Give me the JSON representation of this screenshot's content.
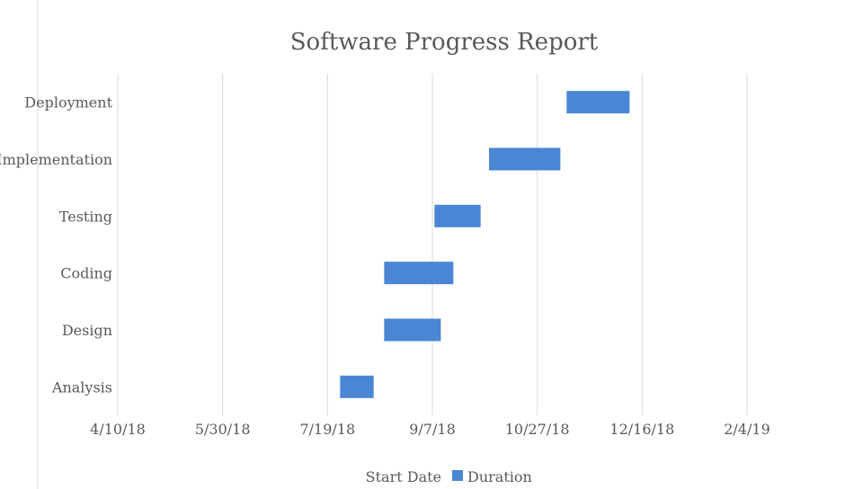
{
  "chart_data": {
    "type": "bar",
    "orientation": "horizontal",
    "subtype": "gantt",
    "title": "Software Progress Report",
    "xlabel": "",
    "ylabel": "",
    "categories": [
      "Analysis",
      "Design",
      "Coding",
      "Testing",
      "Implementation",
      "Deployment"
    ],
    "series": [
      {
        "name": "Start Date",
        "color": "none",
        "values": [
          "2018-07-25",
          "2018-08-15",
          "2018-08-15",
          "2018-09-08",
          "2018-10-04",
          "2018-11-10"
        ]
      },
      {
        "name": "Duration",
        "color": "#4a86d4",
        "values": [
          16,
          27,
          33,
          22,
          34,
          30
        ]
      }
    ],
    "x_ticks": [
      "4/10/18",
      "5/30/18",
      "7/19/18",
      "9/7/18",
      "10/27/18",
      "12/16/18",
      "2/4/19"
    ],
    "xlim": [
      "2018-04-10",
      "2019-02-04"
    ],
    "grid": true,
    "legend": {
      "position": "bottom"
    }
  }
}
